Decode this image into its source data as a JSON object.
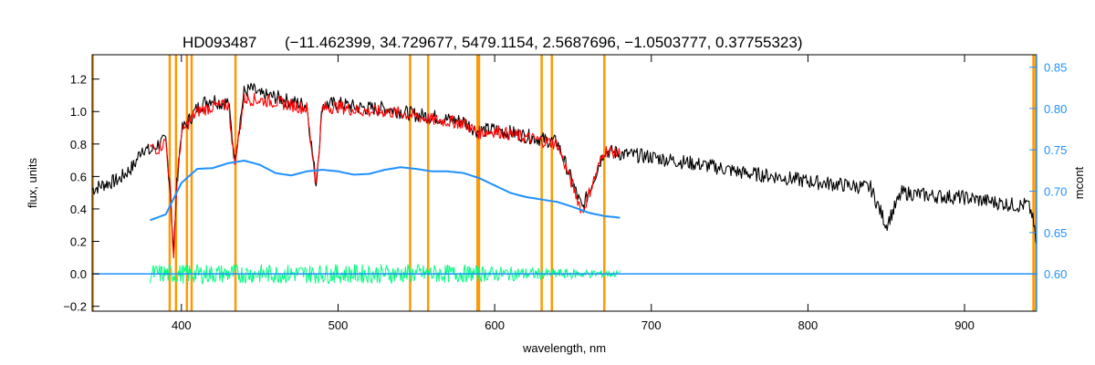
{
  "chart_data": {
    "type": "line",
    "title_object": "HD093487",
    "title_params": "(−11.462399, 34.729677, 5479.1154, 2.5687696, −1.0503777, 0.37755323)",
    "xlabel": "wavelength, nm",
    "ylabel": "flux, units",
    "ylabel_right": "mcont",
    "xlim": [
      343,
      946
    ],
    "ylim": [
      -0.23,
      1.35
    ],
    "ylim_right": [
      0.555,
      0.865
    ],
    "x_ticks": [
      400,
      500,
      600,
      700,
      800,
      900
    ],
    "y_ticks": [
      -0.2,
      0.0,
      0.2,
      0.4,
      0.6,
      0.8,
      1.0,
      1.2
    ],
    "y_ticks_right": [
      0.6,
      0.65,
      0.7,
      0.75,
      0.8,
      0.85
    ],
    "x_tick_labels": [
      "400",
      "500",
      "600",
      "700",
      "800",
      "900"
    ],
    "y_tick_labels": [
      "−0.2",
      "0.0",
      "0.2",
      "0.4",
      "0.6",
      "0.8",
      "1.0",
      "1.2"
    ],
    "y_tick_labels_right": [
      "0.60",
      "0.65",
      "0.70",
      "0.75",
      "0.80",
      "0.85"
    ],
    "colors": {
      "observed": "#000000",
      "model": "#ff0000",
      "continuum": "#1e90ff",
      "residual": "#00ff7f",
      "mask_lines": "#ff9900",
      "right_axis": "#1e90ff"
    },
    "masked_lines_nm": [
      343.5,
      392.5,
      396.5,
      403.5,
      406.5,
      434.5,
      546,
      557.5,
      589,
      590,
      630,
      636.5,
      670,
      944,
      945.5
    ],
    "series": [
      {
        "role": "observed",
        "x": [
          343,
          350,
          360,
          370,
          375,
          380,
          385,
          390,
          393,
          395,
          397,
          400,
          405,
          410,
          415,
          420,
          425,
          430,
          434,
          440,
          445,
          450,
          460,
          470,
          480,
          486,
          490,
          500,
          510,
          520,
          530,
          540,
          550,
          560,
          570,
          580,
          589,
          600,
          620,
          640,
          656,
          670,
          680,
          700,
          720,
          740,
          760,
          780,
          800,
          820,
          840,
          850,
          860,
          880,
          900,
          920,
          935,
          940,
          943,
          946
        ],
        "y": [
          0.52,
          0.55,
          0.58,
          0.67,
          0.78,
          0.75,
          0.8,
          0.82,
          0.5,
          0.12,
          0.55,
          0.88,
          0.95,
          1.02,
          1.06,
          1.08,
          1.05,
          1.06,
          0.7,
          1.12,
          1.14,
          1.1,
          1.09,
          1.06,
          1.04,
          0.55,
          1.04,
          1.05,
          1.03,
          1.02,
          1.02,
          1.0,
          0.98,
          0.97,
          0.95,
          0.94,
          0.88,
          0.89,
          0.85,
          0.81,
          0.4,
          0.76,
          0.74,
          0.72,
          0.69,
          0.66,
          0.62,
          0.6,
          0.57,
          0.55,
          0.53,
          0.3,
          0.5,
          0.48,
          0.47,
          0.44,
          0.42,
          0.43,
          0.37,
          0.18
        ]
      },
      {
        "role": "model",
        "x": [
          380,
          385,
          390,
          393,
          395,
          397,
          400,
          405,
          410,
          420,
          430,
          434,
          440,
          450,
          460,
          470,
          480,
          486,
          490,
          500,
          510,
          520,
          530,
          540,
          550,
          560,
          570,
          580,
          589,
          600,
          620,
          640,
          656,
          670,
          680
        ],
        "y": [
          0.78,
          0.77,
          0.82,
          0.5,
          0.1,
          0.55,
          0.86,
          0.94,
          1.0,
          1.03,
          1.04,
          0.68,
          1.08,
          1.07,
          1.06,
          1.04,
          1.02,
          0.55,
          1.02,
          1.03,
          1.01,
          1.0,
          1.0,
          0.99,
          0.97,
          0.95,
          0.94,
          0.93,
          0.87,
          0.88,
          0.84,
          0.8,
          0.38,
          0.76,
          0.74
        ]
      },
      {
        "role": "continuum",
        "axis": "right",
        "x": [
          380,
          390,
          400,
          410,
          420,
          430,
          440,
          450,
          460,
          470,
          480,
          490,
          500,
          510,
          520,
          530,
          540,
          550,
          560,
          570,
          580,
          590,
          600,
          610,
          620,
          630,
          640,
          650,
          660,
          670,
          680
        ],
        "y": [
          0.665,
          0.672,
          0.71,
          0.727,
          0.728,
          0.734,
          0.737,
          0.732,
          0.722,
          0.719,
          0.724,
          0.726,
          0.724,
          0.72,
          0.721,
          0.726,
          0.729,
          0.727,
          0.724,
          0.724,
          0.722,
          0.716,
          0.707,
          0.698,
          0.693,
          0.69,
          0.687,
          0.681,
          0.674,
          0.67,
          0.668
        ]
      },
      {
        "role": "residual_band",
        "x": [
          380,
          680
        ],
        "y": [
          0.0,
          0.0
        ],
        "spread": 0.06
      },
      {
        "role": "zero_baseline",
        "x": [
          343,
          380,
          680,
          946
        ],
        "y": [
          0.0,
          0.0,
          0.0,
          0.0
        ]
      }
    ],
    "grid": false,
    "legend": "none"
  }
}
